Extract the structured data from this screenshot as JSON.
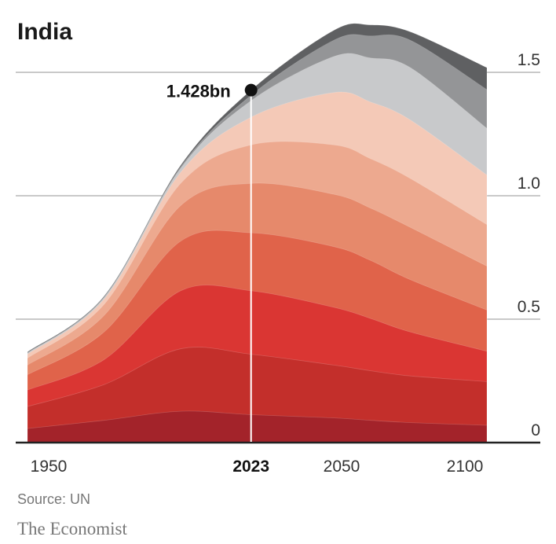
{
  "chart_data": {
    "type": "area",
    "stacked": true,
    "title": "India",
    "xlabel": "",
    "ylabel": "",
    "xlim": [
      1950,
      2100
    ],
    "ylim": [
      0,
      1.5
    ],
    "yticks": [
      {
        "value": 0,
        "label": "0"
      },
      {
        "value": 0.5,
        "label": "0.5"
      },
      {
        "value": 1.0,
        "label": "1.0"
      },
      {
        "value": 1.5,
        "label": "1.5"
      }
    ],
    "xticks": [
      {
        "value": 1950,
        "label": "1950",
        "bold": false
      },
      {
        "value": 2023,
        "label": "2023",
        "bold": true
      },
      {
        "value": 2050,
        "label": "2050",
        "bold": false
      },
      {
        "value": 2100,
        "label": "2100",
        "bold": false
      }
    ],
    "grid": true,
    "x": [
      1950,
      1975,
      2000,
      2023,
      2050,
      2062,
      2075,
      2100
    ],
    "series": [
      {
        "color": "#a3232a",
        "values": [
          0.057,
          0.09,
          0.127,
          0.113,
          0.1,
          0.09,
          0.081,
          0.07
        ]
      },
      {
        "color": "#c32f2b",
        "values": [
          0.089,
          0.145,
          0.253,
          0.245,
          0.214,
          0.201,
          0.189,
          0.177
        ]
      },
      {
        "color": "#da3633",
        "values": [
          0.067,
          0.101,
          0.235,
          0.257,
          0.234,
          0.212,
          0.178,
          0.123
        ]
      },
      {
        "color": "#e0634a",
        "values": [
          0.062,
          0.112,
          0.201,
          0.235,
          0.246,
          0.235,
          0.212,
          0.167
        ]
      },
      {
        "color": "#e6896b",
        "values": [
          0.039,
          0.067,
          0.144,
          0.2,
          0.212,
          0.212,
          0.212,
          0.178
        ]
      },
      {
        "color": "#eda98f",
        "values": [
          0.028,
          0.045,
          0.09,
          0.156,
          0.2,
          0.2,
          0.198,
          0.168
        ]
      },
      {
        "color": "#f4c9b7",
        "values": [
          0.016,
          0.021,
          0.045,
          0.112,
          0.212,
          0.23,
          0.237,
          0.201
        ]
      },
      {
        "color": "#c8c9cb",
        "values": [
          0.004,
          0.006,
          0.016,
          0.067,
          0.146,
          0.178,
          0.212,
          0.189
        ]
      },
      {
        "color": "#949597",
        "values": [
          0.002,
          0.003,
          0.006,
          0.022,
          0.066,
          0.089,
          0.111,
          0.157
        ]
      },
      {
        "color": "#5f6062",
        "values": [
          0.003,
          0.003,
          0.006,
          0.021,
          0.04,
          0.045,
          0.034,
          0.089
        ]
      }
    ],
    "annotations": [
      {
        "x": 2023,
        "y": 1.428,
        "label": "1.428bn"
      }
    ],
    "source": "Source: UN",
    "brand": "The Economist"
  }
}
